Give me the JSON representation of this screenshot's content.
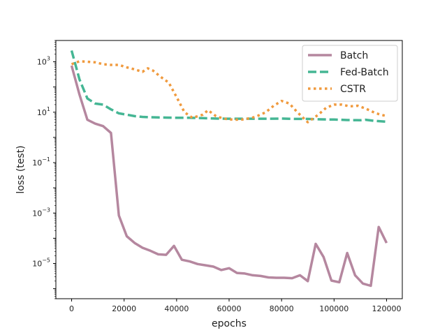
{
  "chart_data": {
    "type": "line",
    "xlabel": "epochs",
    "ylabel": "loss (test)",
    "yscale": "log",
    "xlim": [
      -6000,
      126000
    ],
    "ylim": [
      4e-07,
      7000.0
    ],
    "x_ticks": [
      0,
      20000,
      40000,
      60000,
      80000,
      100000,
      120000
    ],
    "x_tick_labels": [
      "0",
      "20000",
      "40000",
      "60000",
      "80000",
      "100000",
      "120000"
    ],
    "y_ticks": [
      1e-05,
      0.001,
      0.1,
      10.0,
      1000.0
    ],
    "y_tick_labels": [
      {
        "base": "10",
        "exp": "−5"
      },
      {
        "base": "10",
        "exp": "−3"
      },
      {
        "base": "10",
        "exp": "−1"
      },
      {
        "base": "10",
        "exp": "1"
      },
      {
        "base": "10",
        "exp": "3"
      }
    ],
    "grid": false,
    "legend_position": "top-right",
    "series": [
      {
        "name": "Batch",
        "color": "#b5879f",
        "style": "solid",
        "points": [
          [
            0,
            700
          ],
          [
            3000,
            50
          ],
          [
            6000,
            5
          ],
          [
            9000,
            3.5
          ],
          [
            12000,
            2.8
          ],
          [
            15000,
            1.5
          ],
          [
            18000,
            0.0008
          ],
          [
            21000,
            0.00012
          ],
          [
            24000,
            6.5e-05
          ],
          [
            27000,
            4.2e-05
          ],
          [
            30000,
            3.2e-05
          ],
          [
            33000,
            2.3e-05
          ],
          [
            36000,
            2.2e-05
          ],
          [
            39000,
            5e-05
          ],
          [
            42000,
            1.4e-05
          ],
          [
            45000,
            1.2e-05
          ],
          [
            48000,
            9.5e-06
          ],
          [
            51000,
            8.5e-06
          ],
          [
            54000,
            7.5e-06
          ],
          [
            57000,
            5.5e-06
          ],
          [
            60000,
            6.5e-06
          ],
          [
            63000,
            4.2e-06
          ],
          [
            66000,
            4e-06
          ],
          [
            69000,
            3.4e-06
          ],
          [
            72000,
            3.2e-06
          ],
          [
            75000,
            2.8e-06
          ],
          [
            78000,
            2.7e-06
          ],
          [
            81000,
            2.7e-06
          ],
          [
            84000,
            2.6e-06
          ],
          [
            87000,
            3.4e-06
          ],
          [
            90000,
            2e-06
          ],
          [
            93000,
            6e-05
          ],
          [
            96000,
            1.8e-05
          ],
          [
            99000,
            2.1e-06
          ],
          [
            102000,
            1.8e-06
          ],
          [
            105000,
            2.6e-05
          ],
          [
            108000,
            3.4e-06
          ],
          [
            111000,
            1.6e-06
          ],
          [
            114000,
            1.3e-06
          ],
          [
            117000,
            0.00028
          ],
          [
            120000,
            6.5e-05
          ]
        ]
      },
      {
        "name": "Fed-Batch",
        "color": "#45b694",
        "style": "dashed",
        "points": [
          [
            0,
            2800
          ],
          [
            3000,
            200
          ],
          [
            6000,
            35
          ],
          [
            9000,
            22
          ],
          [
            12000,
            20
          ],
          [
            15000,
            13
          ],
          [
            18000,
            9
          ],
          [
            21000,
            8
          ],
          [
            24000,
            7
          ],
          [
            27000,
            6.5
          ],
          [
            30000,
            6.3
          ],
          [
            33000,
            6.2
          ],
          [
            36000,
            6.1
          ],
          [
            40000,
            6
          ],
          [
            45000,
            6
          ],
          [
            50000,
            5.8
          ],
          [
            55000,
            5.6
          ],
          [
            60000,
            5.5
          ],
          [
            65000,
            5.5
          ],
          [
            70000,
            5.5
          ],
          [
            75000,
            5.5
          ],
          [
            80000,
            5.6
          ],
          [
            85000,
            5.4
          ],
          [
            90000,
            5.4
          ],
          [
            95000,
            5.2
          ],
          [
            100000,
            5.1
          ],
          [
            105000,
            4.9
          ],
          [
            110000,
            4.8
          ],
          [
            112000,
            5
          ],
          [
            115000,
            4.6
          ],
          [
            120000,
            4.2
          ]
        ]
      },
      {
        "name": "CSTR",
        "color": "#f09a3e",
        "style": "dotted",
        "points": [
          [
            0,
            800
          ],
          [
            3000,
            1050
          ],
          [
            6000,
            1000
          ],
          [
            9000,
            950
          ],
          [
            12000,
            800
          ],
          [
            15000,
            750
          ],
          [
            18000,
            750
          ],
          [
            21000,
            600
          ],
          [
            24000,
            500
          ],
          [
            27000,
            400
          ],
          [
            29000,
            550
          ],
          [
            31000,
            450
          ],
          [
            34000,
            250
          ],
          [
            37000,
            150
          ],
          [
            40000,
            40
          ],
          [
            43000,
            10
          ],
          [
            46000,
            6
          ],
          [
            50000,
            8
          ],
          [
            52000,
            12
          ],
          [
            55000,
            7
          ],
          [
            58000,
            5.5
          ],
          [
            62000,
            5
          ],
          [
            66000,
            5.2
          ],
          [
            70000,
            6.5
          ],
          [
            74000,
            10
          ],
          [
            77000,
            18
          ],
          [
            80000,
            28
          ],
          [
            83000,
            22
          ],
          [
            86000,
            10
          ],
          [
            90000,
            4
          ],
          [
            94000,
            8
          ],
          [
            97000,
            15
          ],
          [
            100000,
            20
          ],
          [
            103000,
            20
          ],
          [
            106000,
            17
          ],
          [
            109000,
            18
          ],
          [
            112000,
            14
          ],
          [
            116000,
            9
          ],
          [
            120000,
            7
          ]
        ]
      }
    ]
  }
}
